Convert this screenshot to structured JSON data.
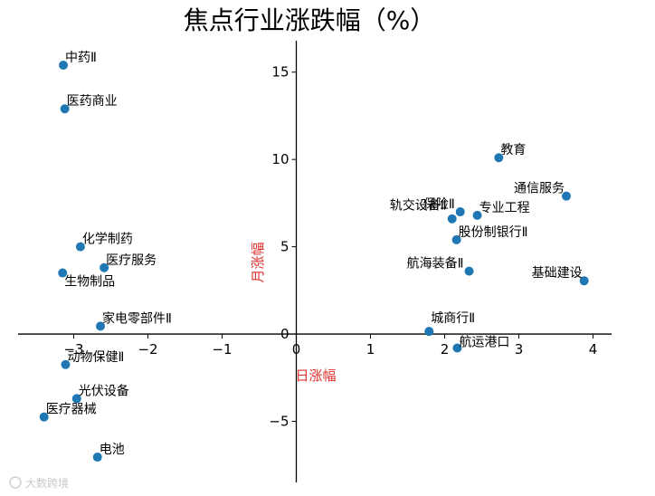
{
  "chart_data": {
    "type": "scatter",
    "title": "焦点行业涨跌幅（%）",
    "xlabel": "日涨幅",
    "ylabel": "月涨幅",
    "xlim": [
      -3.75,
      4.25
    ],
    "ylim": [
      -8.5,
      16.8
    ],
    "xticks": [
      -3,
      -2,
      -1,
      0,
      1,
      2,
      3,
      4
    ],
    "xtick_labels": [
      "−3",
      "−2",
      "−1",
      "0",
      "1",
      "2",
      "3",
      "4"
    ],
    "yticks": [
      -5,
      0,
      5,
      10,
      15
    ],
    "ytick_labels": [
      "−5",
      "0",
      "5",
      "10",
      "15"
    ],
    "marker_color": "#1f77b4",
    "axis_label_color": "#e0302e",
    "spines": "centered",
    "grid": false,
    "points": [
      {
        "label": "中药Ⅱ",
        "x": -3.14,
        "y": 15.4
      },
      {
        "label": "医药商业",
        "x": -3.12,
        "y": 12.9
      },
      {
        "label": "化学制药",
        "x": -2.91,
        "y": 5.0
      },
      {
        "label": "医疗服务",
        "x": -2.59,
        "y": 3.8
      },
      {
        "label": "生物制品",
        "x": -3.15,
        "y": 3.5
      },
      {
        "label": "家电零部件Ⅱ",
        "x": -2.64,
        "y": 0.45
      },
      {
        "label": "动物保健Ⅱ",
        "x": -3.11,
        "y": -1.75
      },
      {
        "label": "光伏设备",
        "x": -2.96,
        "y": -3.7
      },
      {
        "label": "医疗器械",
        "x": -3.4,
        "y": -4.75
      },
      {
        "label": "电池",
        "x": -2.68,
        "y": -7.05
      },
      {
        "label": "教育",
        "x": 2.73,
        "y": 10.1
      },
      {
        "label": "通信服务",
        "x": 3.64,
        "y": 7.9
      },
      {
        "label": "保险Ⅱ",
        "x": 2.21,
        "y": 7.0
      },
      {
        "label": "专业工程",
        "x": 2.44,
        "y": 6.8
      },
      {
        "label": "轨交设备Ⅱ",
        "x": 2.1,
        "y": 6.6
      },
      {
        "label": "股份制银行Ⅱ",
        "x": 2.16,
        "y": 5.4
      },
      {
        "label": "航海装备Ⅱ",
        "x": 2.33,
        "y": 3.6
      },
      {
        "label": "基础建设",
        "x": 3.88,
        "y": 3.05
      },
      {
        "label": "城商行Ⅱ",
        "x": 1.79,
        "y": 0.15
      },
      {
        "label": "航运港口",
        "x": 2.17,
        "y": -0.8
      }
    ]
  },
  "watermark": "大数跨境"
}
